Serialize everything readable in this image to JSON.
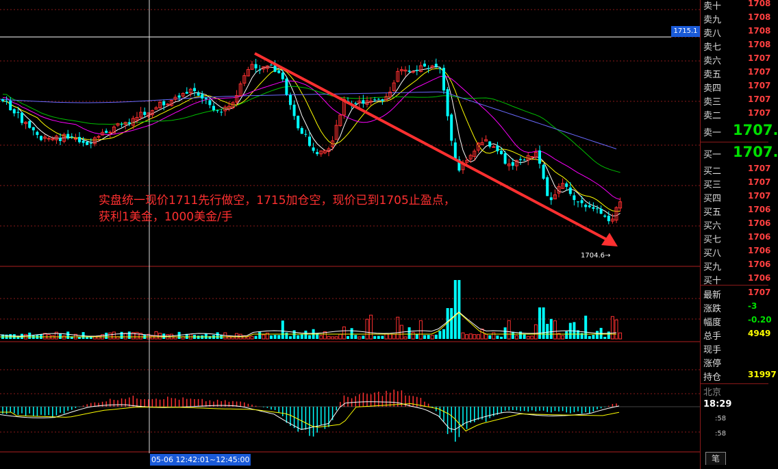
{
  "chart_data": {
    "type": "candlestick",
    "main_chart": {
      "current_price_tag": "1715.1",
      "low_marker": "1704.6→",
      "annotation_line1": "实盘统一现价1711先行做空，1715加仓空，现价已到1705止盈点，",
      "annotation_line2": "获利1美金，1000美金/手",
      "trend_arrow": {
        "from": "high",
        "to": "low"
      }
    },
    "cursor_time": "05-06 12:42:01~12:45:00",
    "indicator_panels": [
      "volume",
      "macd"
    ]
  },
  "quote_panel": {
    "sell_rows": [
      {
        "label": "卖十",
        "value": "1708"
      },
      {
        "label": "卖九",
        "value": "1708"
      },
      {
        "label": "卖八",
        "value": "1708"
      },
      {
        "label": "卖七",
        "value": "1708"
      },
      {
        "label": "卖六",
        "value": "1707"
      },
      {
        "label": "卖五",
        "value": "1707"
      },
      {
        "label": "卖四",
        "value": "1707"
      },
      {
        "label": "卖三",
        "value": "1707"
      },
      {
        "label": "卖二",
        "value": "1707"
      }
    ],
    "sell_one": {
      "label": "卖一",
      "value": "1707."
    },
    "buy_one": {
      "label": "买一",
      "value": "1707."
    },
    "buy_rows": [
      {
        "label": "买二",
        "value": "1707"
      },
      {
        "label": "买三",
        "value": "1707"
      },
      {
        "label": "买四",
        "value": "1707"
      },
      {
        "label": "买五",
        "value": "1706"
      },
      {
        "label": "买六",
        "value": "1706"
      },
      {
        "label": "买七",
        "value": "1706"
      },
      {
        "label": "买八",
        "value": "1706"
      },
      {
        "label": "买九",
        "value": "1706"
      },
      {
        "label": "买十",
        "value": "1706"
      }
    ],
    "stats": [
      {
        "label": "最新",
        "value": "1707",
        "color": "red"
      },
      {
        "label": "涨跌",
        "value": "-3",
        "color": "green"
      },
      {
        "label": "幅度",
        "value": "-0.20",
        "color": "green"
      },
      {
        "label": "总手",
        "value": "4949",
        "color": "yellow"
      },
      {
        "label": "现手",
        "value": "",
        "color": "yellow"
      },
      {
        "label": "涨停",
        "value": "",
        "color": "yellow"
      },
      {
        "label": "持仓",
        "value": "31997",
        "color": "yellow"
      }
    ],
    "location": "北京",
    "clock": "18:29",
    "tick_rows": [
      ":58",
      ":58"
    ],
    "tab_label": "笔"
  },
  "colors": {
    "up": "#ff3030",
    "down": "#00ffff",
    "grid": "#8b1a1a",
    "ma_white": "#ffffff",
    "ma_yellow": "#ffff00",
    "ma_magenta": "#ff00ff",
    "ma_green": "#00c000",
    "ma_blue": "#6a6aff",
    "arrow": "#ff3030",
    "tag_blue": "#1a5ad8"
  }
}
